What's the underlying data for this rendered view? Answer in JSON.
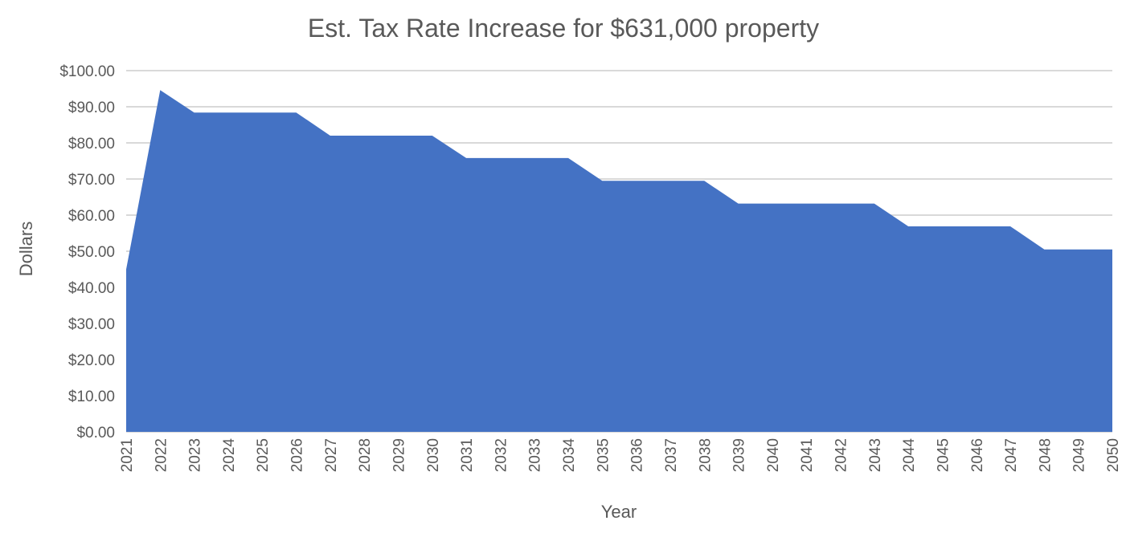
{
  "chart_data": {
    "type": "area",
    "title": "Est. Tax Rate Increase for $631,000 property",
    "xlabel": "Year",
    "ylabel": "Dollars",
    "x": [
      2021,
      2022,
      2023,
      2024,
      2025,
      2026,
      2027,
      2028,
      2029,
      2030,
      2031,
      2032,
      2033,
      2034,
      2035,
      2036,
      2037,
      2038,
      2039,
      2040,
      2041,
      2042,
      2043,
      2044,
      2045,
      2046,
      2047,
      2048,
      2049,
      2050
    ],
    "x_tick_labels": [
      "2021",
      "2022",
      "2023",
      "2024",
      "2025",
      "2026",
      "2027",
      "2028",
      "2029",
      "2030",
      "2031",
      "2032",
      "2033",
      "2034",
      "2035",
      "2036",
      "2037",
      "2038",
      "2039",
      "2040",
      "2041",
      "2042",
      "2043",
      "2044",
      "2045",
      "2046",
      "2047",
      "2048",
      "2049",
      "2050"
    ],
    "values": [
      45.0,
      94.6,
      88.4,
      88.4,
      88.4,
      88.4,
      82.0,
      82.0,
      82.0,
      82.0,
      75.8,
      75.8,
      75.8,
      75.8,
      69.5,
      69.5,
      69.5,
      69.5,
      63.2,
      63.2,
      63.2,
      63.2,
      63.2,
      56.9,
      56.9,
      56.9,
      56.9,
      50.5,
      50.5,
      50.5
    ],
    "ylim": [
      0,
      100
    ],
    "y_ticks": [
      0,
      10,
      20,
      30,
      40,
      50,
      60,
      70,
      80,
      90,
      100
    ],
    "y_tick_labels": [
      "$0.00",
      "$10.00",
      "$20.00",
      "$30.00",
      "$40.00",
      "$50.00",
      "$60.00",
      "$70.00",
      "$80.00",
      "$90.00",
      "$100.00"
    ],
    "grid": true,
    "legend": "none",
    "colors": {
      "area": "#4472c4",
      "grid": "#d9d9d9",
      "text": "#595959"
    }
  }
}
